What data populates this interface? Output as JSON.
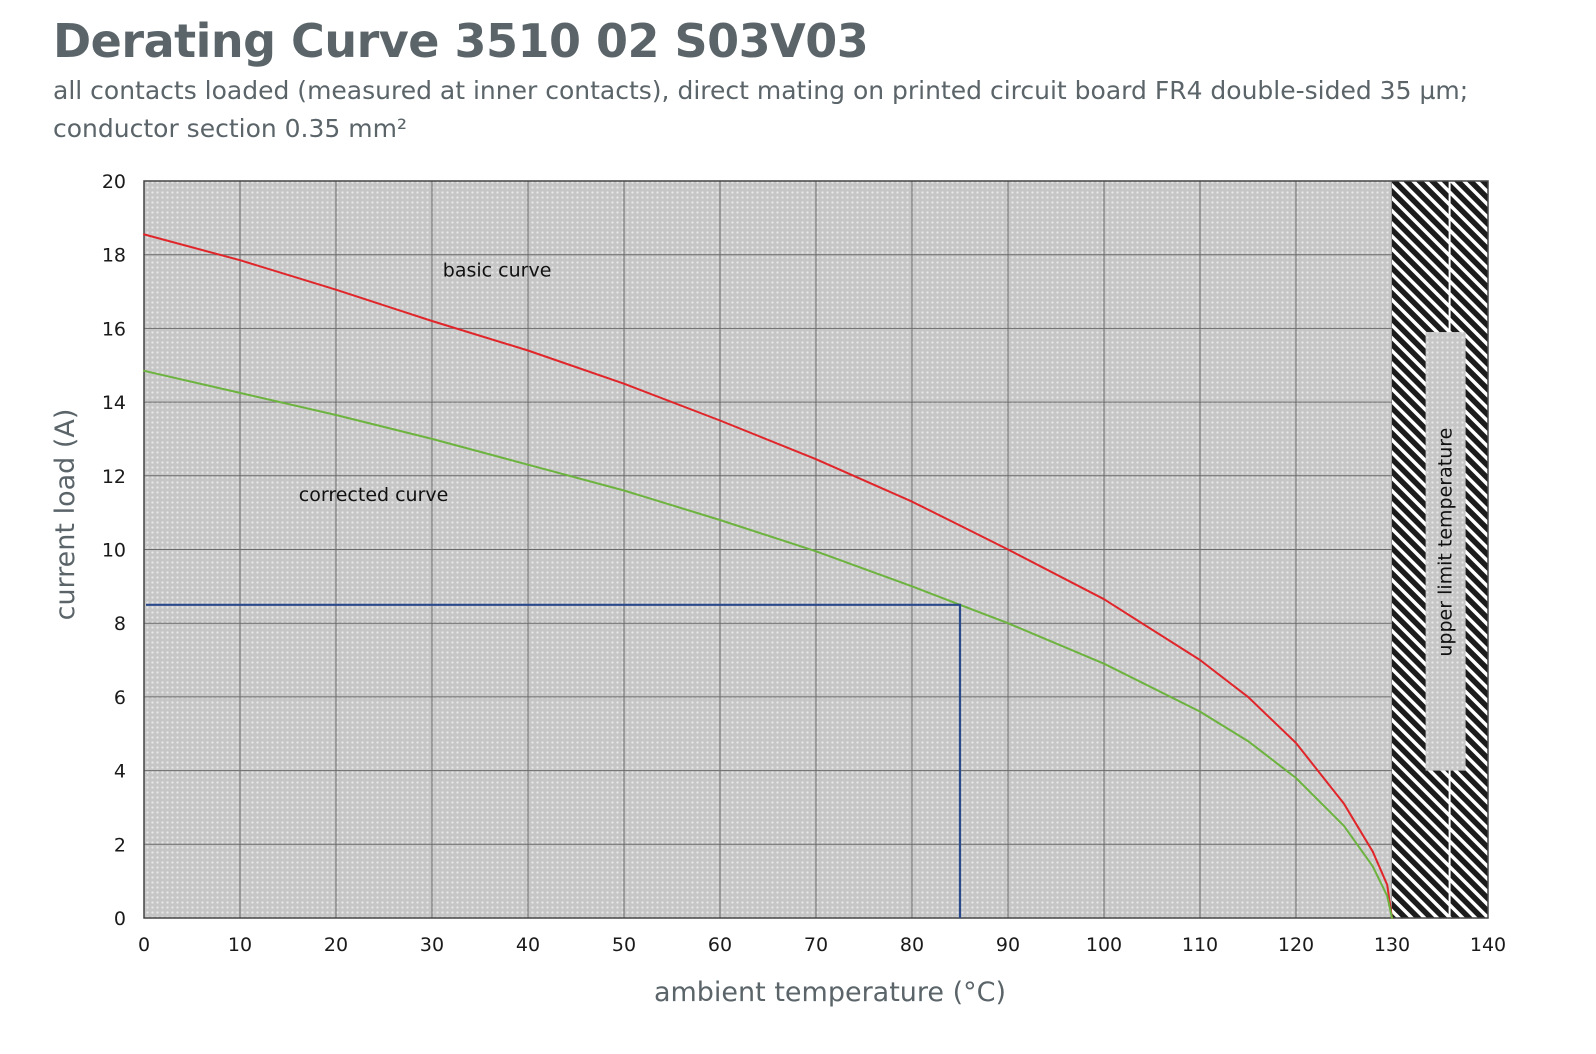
{
  "chart_data": {
    "type": "line",
    "title": "Derating Curve 3510 02 S03V03",
    "subtitle_lines": [
      "all contacts loaded (measured at inner contacts), direct mating on printed circuit board FR4 double-sided 35 µm;",
      "conductor section 0.35 mm²"
    ],
    "xlabel": "ambient temperature (°C)",
    "ylabel": "current load (A)",
    "xlim": [
      0,
      140
    ],
    "ylim": [
      0,
      20
    ],
    "xticks": [
      0,
      10,
      20,
      30,
      40,
      50,
      60,
      70,
      80,
      90,
      100,
      110,
      120,
      130,
      140
    ],
    "yticks": [
      0,
      2,
      4,
      6,
      8,
      10,
      12,
      14,
      16,
      18,
      20
    ],
    "grid": true,
    "legend": "none",
    "series": [
      {
        "label": "basic curve",
        "color": "#e0262a",
        "x": [
          0,
          10,
          20,
          30,
          40,
          50,
          60,
          70,
          80,
          85,
          90,
          100,
          110,
          115,
          120,
          125,
          128,
          129.5,
          130
        ],
        "y": [
          18.55,
          17.85,
          17.05,
          16.2,
          15.4,
          14.5,
          13.5,
          12.45,
          11.3,
          10.65,
          10.0,
          8.65,
          7.0,
          6.0,
          4.75,
          3.1,
          1.8,
          0.9,
          0.0
        ]
      },
      {
        "label": "corrected curve",
        "color": "#6db33f",
        "x": [
          0,
          10,
          20,
          30,
          40,
          50,
          60,
          70,
          80,
          85,
          90,
          100,
          110,
          115,
          120,
          125,
          128,
          129.5,
          130
        ],
        "y": [
          14.85,
          14.25,
          13.65,
          13.0,
          12.3,
          11.6,
          10.8,
          9.95,
          9.0,
          8.5,
          8.0,
          6.9,
          5.6,
          4.8,
          3.8,
          2.5,
          1.4,
          0.6,
          0.0
        ]
      }
    ],
    "reference_point": {
      "x": 85,
      "y": 8.5,
      "color": "#2b4a8c"
    },
    "limit_region": {
      "x_from": 130,
      "x_to": 140,
      "label": "upper limit temperature"
    },
    "annotations": [
      {
        "text": "basic curve",
        "x": 40.5,
        "y": 17.6
      },
      {
        "text": "corrected curve",
        "x": 25.5,
        "y": 11.5
      }
    ]
  }
}
